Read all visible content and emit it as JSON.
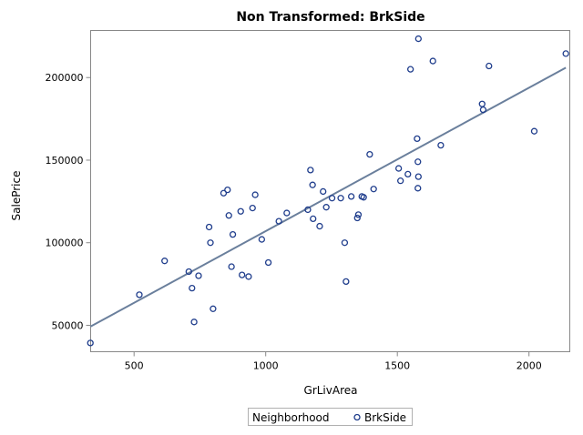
{
  "chart_data": {
    "type": "scatter",
    "title": "Non Transformed: BrkSide",
    "xlabel": "GrLivArea",
    "ylabel": "SalePrice",
    "xlim": [
      335,
      2155
    ],
    "ylim": [
      34000,
      228500
    ],
    "xticks": [
      500,
      1000,
      1500,
      2000
    ],
    "xtick_labels": [
      "500",
      "1000",
      "1500",
      "2000"
    ],
    "yticks": [
      50000,
      100000,
      150000,
      200000
    ],
    "ytick_labels": [
      "50000",
      "100000",
      "150000",
      "200000"
    ],
    "grid": false,
    "legend": {
      "title": "Neighborhood",
      "entries": [
        "BrkSide"
      ],
      "placement": "bottom-center"
    },
    "colors": {
      "marker": "#1f3d8c",
      "fit_line": "#6a7f9c",
      "frame": "#888888"
    },
    "series": [
      {
        "name": "BrkSide",
        "points": [
          [
            334,
            39300
          ],
          [
            520,
            68500
          ],
          [
            616,
            89000
          ],
          [
            708,
            82500
          ],
          [
            720,
            72500
          ],
          [
            728,
            52000
          ],
          [
            745,
            80000
          ],
          [
            785,
            109500
          ],
          [
            790,
            100000
          ],
          [
            800,
            60000
          ],
          [
            840,
            130000
          ],
          [
            855,
            132000
          ],
          [
            860,
            116500
          ],
          [
            870,
            85500
          ],
          [
            875,
            105000
          ],
          [
            905,
            119000
          ],
          [
            910,
            80500
          ],
          [
            935,
            79500
          ],
          [
            950,
            121000
          ],
          [
            960,
            129000
          ],
          [
            985,
            102000
          ],
          [
            1010,
            88000
          ],
          [
            1050,
            113000
          ],
          [
            1080,
            118000
          ],
          [
            1160,
            120000
          ],
          [
            1170,
            144000
          ],
          [
            1178,
            135000
          ],
          [
            1180,
            114500
          ],
          [
            1205,
            110000
          ],
          [
            1218,
            131000
          ],
          [
            1230,
            121500
          ],
          [
            1252,
            127000
          ],
          [
            1285,
            127000
          ],
          [
            1300,
            100000
          ],
          [
            1305,
            76500
          ],
          [
            1325,
            128000
          ],
          [
            1348,
            115000
          ],
          [
            1352,
            117000
          ],
          [
            1365,
            128000
          ],
          [
            1372,
            127500
          ],
          [
            1395,
            153500
          ],
          [
            1410,
            132500
          ],
          [
            1505,
            145000
          ],
          [
            1512,
            137500
          ],
          [
            1540,
            141500
          ],
          [
            1550,
            205000
          ],
          [
            1575,
            163000
          ],
          [
            1578,
            149000
          ],
          [
            1578,
            133000
          ],
          [
            1580,
            140000
          ],
          [
            1580,
            223500
          ],
          [
            1635,
            210000
          ],
          [
            1665,
            159000
          ],
          [
            1822,
            184000
          ],
          [
            1826,
            180500
          ],
          [
            1848,
            207000
          ],
          [
            2020,
            167500
          ],
          [
            2140,
            214500
          ]
        ]
      }
    ],
    "fit": {
      "type": "linear",
      "x_range": [
        334,
        2140
      ],
      "y_at_x": [
        49200,
        206000
      ]
    }
  }
}
